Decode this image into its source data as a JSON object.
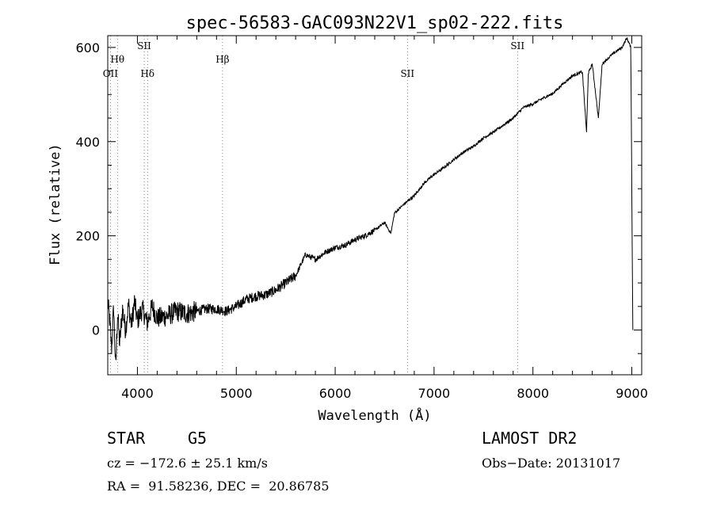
{
  "chart_data": {
    "type": "line",
    "title": "spec-56583-GAC093N22V1_sp02-222.fits",
    "xlabel": "Wavelength (Å)",
    "ylabel": "Flux (relative)",
    "xlim": [
      3700,
      9100
    ],
    "ylim": [
      -95,
      625
    ],
    "x_ticks": [
      4000,
      5000,
      6000,
      7000,
      8000,
      9000
    ],
    "y_ticks": [
      0,
      200,
      400,
      600
    ],
    "grid": false,
    "lines": [
      {
        "label": "OII",
        "x": 3727
      },
      {
        "label": "Hθ",
        "x": 3798
      },
      {
        "label": "SII",
        "x": 4069
      },
      {
        "label": "Hδ",
        "x": 4102
      },
      {
        "label": "Hβ",
        "x": 4861
      },
      {
        "label": "SII",
        "x": 6731
      },
      {
        "label": "SII",
        "x": 7844
      }
    ],
    "series": [
      {
        "values": [
          [
            3700,
            60
          ],
          [
            3720,
            20
          ],
          [
            3740,
            -40
          ],
          [
            3760,
            50
          ],
          [
            3780,
            -85
          ],
          [
            3800,
            40
          ],
          [
            3820,
            -30
          ],
          [
            3850,
            45
          ],
          [
            3880,
            0
          ],
          [
            3910,
            55
          ],
          [
            3940,
            10
          ],
          [
            3970,
            60
          ],
          [
            4000,
            20
          ],
          [
            4050,
            45
          ],
          [
            4100,
            15
          ],
          [
            4150,
            50
          ],
          [
            4200,
            25
          ],
          [
            4300,
            30
          ],
          [
            4400,
            40
          ],
          [
            4500,
            35
          ],
          [
            4600,
            40
          ],
          [
            4700,
            45
          ],
          [
            4800,
            45
          ],
          [
            4900,
            40
          ],
          [
            5000,
            50
          ],
          [
            5100,
            65
          ],
          [
            5200,
            72
          ],
          [
            5300,
            75
          ],
          [
            5400,
            85
          ],
          [
            5500,
            100
          ],
          [
            5600,
            115
          ],
          [
            5700,
            160
          ],
          [
            5800,
            150
          ],
          [
            5900,
            165
          ],
          [
            6000,
            175
          ],
          [
            6100,
            180
          ],
          [
            6200,
            192
          ],
          [
            6300,
            200
          ],
          [
            6400,
            212
          ],
          [
            6500,
            228
          ],
          [
            6563,
            205
          ],
          [
            6600,
            248
          ],
          [
            6700,
            268
          ],
          [
            6800,
            285
          ],
          [
            6900,
            312
          ],
          [
            7000,
            330
          ],
          [
            7100,
            345
          ],
          [
            7200,
            362
          ],
          [
            7300,
            378
          ],
          [
            7400,
            390
          ],
          [
            7500,
            408
          ],
          [
            7600,
            420
          ],
          [
            7700,
            435
          ],
          [
            7800,
            450
          ],
          [
            7900,
            472
          ],
          [
            8000,
            480
          ],
          [
            8100,
            492
          ],
          [
            8200,
            502
          ],
          [
            8300,
            522
          ],
          [
            8400,
            540
          ],
          [
            8500,
            548
          ],
          [
            8542,
            420
          ],
          [
            8560,
            545
          ],
          [
            8600,
            565
          ],
          [
            8662,
            450
          ],
          [
            8700,
            565
          ],
          [
            8800,
            585
          ],
          [
            8900,
            600
          ],
          [
            8950,
            620
          ],
          [
            8990,
            600
          ],
          [
            9010,
            0
          ]
        ]
      }
    ]
  },
  "footer": {
    "object_class": "STAR",
    "subclass": "G5",
    "survey": "LAMOST DR2",
    "cz_text": "cz = −172.6 ± 25.1 km/s",
    "obs_date": "Obs−Date: 20131017",
    "coords": "RA =  91.58236, DEC =  20.86785"
  }
}
